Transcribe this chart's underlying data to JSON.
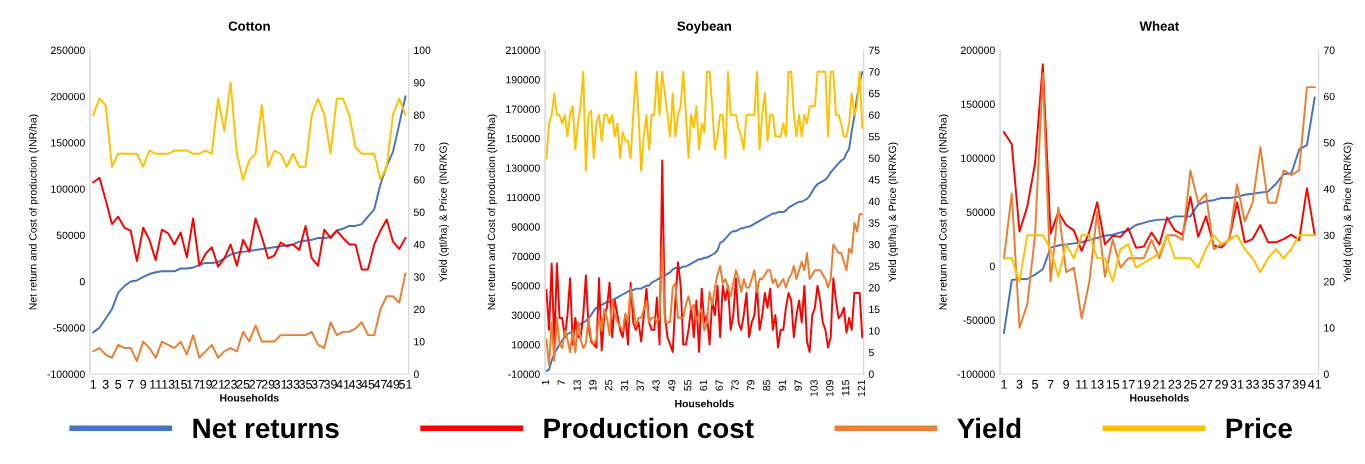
{
  "chart_data": [
    {
      "type": "line",
      "title": "Cotton",
      "xlabel": "Households",
      "ylabel": "Net return and Cost of production (INR/ha)",
      "y2label": "Yield (qtl/ha) & Price (INR/KG)",
      "categories": [
        "1",
        null,
        "3",
        null,
        "5",
        null,
        "7",
        null,
        "9",
        null,
        "11",
        null,
        "13",
        null,
        "15",
        null,
        "17",
        null,
        "19",
        null,
        "21",
        null,
        "23",
        null,
        "25",
        null,
        "27",
        null,
        "29",
        null,
        "31",
        null,
        "33",
        null,
        "35",
        null,
        "37",
        null,
        "39",
        null,
        "41",
        null,
        "43",
        null,
        "45",
        null,
        "47",
        null,
        "49",
        null,
        "51"
      ],
      "ylim": [
        -100000,
        250000
      ],
      "yticks": [
        -100000,
        -50000,
        0,
        50000,
        100000,
        150000,
        200000,
        250000
      ],
      "y2lim": [
        0,
        100
      ],
      "y2ticks": [
        0,
        10,
        20,
        30,
        40,
        50,
        60,
        70,
        80,
        90,
        100
      ],
      "legend": "bottom",
      "series": [
        {
          "name": "Net returns",
          "color": "#4472c4",
          "values": [
            -55000,
            -50000,
            -40000,
            -30000,
            -12000,
            -5000,
            0,
            1000,
            5000,
            8000,
            10000,
            11000,
            11000,
            11000,
            14000,
            14000,
            15000,
            18000,
            20000,
            20000,
            21000,
            25000,
            29000,
            31000,
            32000,
            33000,
            34000,
            35000,
            36000,
            37000,
            38000,
            39000,
            40000,
            43000,
            44000,
            45000,
            47000,
            47000,
            48000,
            55000,
            57000,
            60000,
            60000,
            62000,
            70000,
            78000,
            105000,
            125000,
            140000,
            170000,
            200000
          ]
        },
        {
          "name": "Production cost",
          "color": "#ff0000",
          "values": [
            107000,
            112000,
            88000,
            62000,
            70000,
            58000,
            55000,
            22000,
            58000,
            45000,
            23000,
            56000,
            52000,
            40000,
            53000,
            26000,
            68000,
            17000,
            30000,
            37000,
            16000,
            25000,
            40000,
            17000,
            45000,
            32000,
            68000,
            48000,
            25000,
            28000,
            42000,
            38000,
            40000,
            34000,
            60000,
            25000,
            17000,
            56000,
            47000,
            55000,
            47000,
            40000,
            40000,
            13000,
            13000,
            40000,
            55000,
            67000,
            43000,
            35000,
            47000
          ]
        },
        {
          "name": "Yield",
          "color": "#ed7d31",
          "axis": "y2",
          "values": [
            7,
            8,
            6,
            5,
            9,
            8,
            8,
            4,
            10,
            8,
            5,
            10,
            9,
            8,
            10,
            6,
            12,
            5,
            7,
            9,
            5,
            7,
            8,
            7,
            13,
            10,
            15,
            10,
            10,
            10,
            12,
            12,
            12,
            12,
            12,
            13,
            9,
            8,
            16,
            12,
            13,
            13,
            14,
            16,
            12,
            12,
            20,
            24,
            24,
            22,
            31
          ]
        },
        {
          "name": "Price",
          "color": "#ffc000",
          "axis": "y2",
          "values": [
            80,
            85,
            83,
            64,
            68,
            68,
            68,
            68,
            64,
            69,
            68,
            68,
            68,
            69,
            69,
            69,
            68,
            68,
            69,
            68,
            85,
            75,
            90,
            68,
            60,
            66,
            68,
            83,
            64,
            69,
            68,
            64,
            68,
            64,
            64,
            80,
            85,
            80,
            68,
            85,
            85,
            80,
            70,
            68,
            68,
            68,
            60,
            64,
            80,
            85,
            80
          ]
        }
      ]
    },
    {
      "type": "line",
      "title": "Soybean",
      "xlabel": "Households",
      "ylabel": "Net return and Cost of production (INR/ha)",
      "y2label": "Yield (qtl/ha) & Price (INR/KG)",
      "categories": [
        "1",
        null,
        null,
        null,
        null,
        null,
        "7",
        null,
        null,
        null,
        null,
        null,
        "13",
        null,
        null,
        null,
        null,
        null,
        "19",
        null,
        null,
        null,
        null,
        null,
        "25",
        null,
        null,
        null,
        null,
        null,
        "31",
        null,
        null,
        null,
        null,
        null,
        "37",
        null,
        null,
        null,
        null,
        null,
        "43",
        null,
        null,
        null,
        null,
        null,
        "49",
        null,
        null,
        null,
        null,
        null,
        "55",
        null,
        null,
        null,
        null,
        null,
        "61",
        null,
        null,
        null,
        null,
        null,
        "67",
        null,
        null,
        null,
        null,
        null,
        "73",
        null,
        null,
        null,
        null,
        null,
        "79",
        null,
        null,
        null,
        null,
        null,
        "85",
        null,
        null,
        null,
        null,
        null,
        "91",
        null,
        null,
        null,
        null,
        null,
        "97",
        null,
        null,
        null,
        null,
        null,
        "103",
        null,
        null,
        null,
        null,
        null,
        "109",
        null,
        null,
        null,
        null,
        null,
        "115",
        null,
        null,
        null,
        null,
        null,
        "121"
      ],
      "ylim": [
        -10000,
        210000
      ],
      "yticks": [
        -10000,
        10000,
        30000,
        50000,
        70000,
        90000,
        110000,
        130000,
        150000,
        170000,
        190000,
        210000
      ],
      "y2lim": [
        0,
        75
      ],
      "y2ticks": [
        0,
        5,
        10,
        15,
        20,
        25,
        30,
        35,
        40,
        45,
        50,
        55,
        60,
        65,
        70,
        75
      ],
      "legend": "bottom",
      "series": [
        {
          "name": "Net returns",
          "color": "#4472c4",
          "values": [
            -8000,
            -7000,
            -1000,
            4000,
            7000,
            10000,
            13000,
            15000,
            17000,
            18000,
            19000,
            21000,
            23000,
            24000,
            25000,
            26000,
            28000,
            30000,
            33000,
            35000,
            36000,
            37000,
            38000,
            39000,
            39000,
            40000,
            41000,
            42000,
            43000,
            44000,
            45000,
            46000,
            47000,
            47000,
            48000,
            48000,
            48000,
            49000,
            50000,
            50000,
            52000,
            53000,
            54000,
            55000,
            56000,
            57000,
            58000,
            59000,
            61000,
            62000,
            62000,
            62000,
            63000,
            63000,
            64000,
            65000,
            66000,
            67000,
            68000,
            68000,
            69000,
            69000,
            70000,
            71000,
            72000,
            74000,
            79000,
            80000,
            82000,
            84000,
            86000,
            87000,
            87000,
            88000,
            89000,
            89000,
            90000,
            90000,
            91000,
            92000,
            93000,
            94000,
            95000,
            96000,
            97000,
            98000,
            99000,
            99000,
            100000,
            100000,
            100000,
            101000,
            103000,
            104000,
            105000,
            106000,
            107000,
            107000,
            108000,
            109000,
            111000,
            114000,
            117000,
            119000,
            120000,
            121000,
            122000,
            124000,
            127000,
            129000,
            131000,
            133000,
            135000,
            136000,
            140000,
            143000,
            155000,
            165000,
            178000,
            188000,
            195000
          ]
        },
        {
          "name": "Production cost",
          "color": "#ff0000",
          "values": [
            47000,
            20000,
            65000,
            10000,
            65000,
            28000,
            28000,
            15000,
            30000,
            55000,
            10000,
            28000,
            15000,
            15000,
            30000,
            57000,
            22000,
            12000,
            10000,
            8000,
            55000,
            6000,
            30000,
            35000,
            52000,
            15000,
            40000,
            30000,
            20000,
            15000,
            30000,
            10000,
            52000,
            25000,
            20000,
            25000,
            12000,
            30000,
            48000,
            25000,
            20000,
            20000,
            42000,
            10000,
            135000,
            30000,
            15000,
            10000,
            5000,
            40000,
            66000,
            50000,
            10000,
            10000,
            20000,
            35000,
            15000,
            40000,
            5000,
            48000,
            25000,
            30000,
            10000,
            40000,
            30000,
            50000,
            15000,
            50000,
            40000,
            50000,
            20000,
            30000,
            55000,
            25000,
            20000,
            30000,
            45000,
            15000,
            25000,
            30000,
            50000,
            20000,
            30000,
            45000,
            35000,
            48000,
            20000,
            30000,
            8000,
            20000,
            20000,
            35000,
            45000,
            40000,
            15000,
            30000,
            40000,
            25000,
            50000,
            12000,
            5000,
            30000,
            35000,
            50000,
            40000,
            25000,
            20000,
            8000,
            15000,
            55000,
            40000,
            28000,
            30000,
            35000,
            18000,
            28000,
            20000,
            45000,
            45000,
            45000,
            15000
          ]
        },
        {
          "name": "Yield",
          "color": "#ed7d31",
          "axis": "y2",
          "values": [
            8,
            2,
            12,
            3,
            13,
            7,
            6,
            10,
            8,
            5,
            10,
            5,
            12,
            8,
            6,
            7,
            13,
            8,
            7,
            8,
            13,
            10,
            15,
            13,
            9,
            17,
            14,
            12,
            11,
            10,
            14,
            12,
            20,
            16,
            11,
            13,
            13,
            15,
            17,
            12,
            13,
            13,
            12,
            13,
            30,
            12,
            12,
            12,
            20,
            21,
            13,
            13,
            13,
            16,
            18,
            15,
            16,
            12,
            14,
            15,
            10,
            12,
            19,
            16,
            20,
            23,
            25,
            21,
            22,
            20,
            18,
            21,
            24,
            22,
            19,
            22,
            20,
            20,
            22,
            24,
            19,
            22,
            22,
            23,
            24,
            24,
            21,
            22,
            20,
            21,
            22,
            20,
            22,
            23,
            25,
            22,
            24,
            26,
            24,
            28,
            22,
            23,
            24,
            24,
            24,
            23,
            22,
            20,
            22,
            30,
            29,
            28,
            28,
            26,
            24,
            29,
            28,
            35,
            33,
            37,
            37
          ]
        },
        {
          "name": "Price",
          "color": "#ffc000",
          "axis": "y2",
          "values": [
            50,
            58,
            60,
            65,
            60,
            60,
            58,
            60,
            55,
            60,
            62,
            52,
            58,
            62,
            70,
            47,
            60,
            61,
            50,
            58,
            60,
            54,
            60,
            60,
            58,
            60,
            55,
            58,
            50,
            56,
            54,
            54,
            50,
            60,
            70,
            60,
            47,
            55,
            60,
            52,
            60,
            60,
            70,
            60,
            70,
            65,
            60,
            55,
            65,
            55,
            60,
            62,
            70,
            60,
            50,
            60,
            57,
            62,
            52,
            58,
            56,
            70,
            70,
            62,
            52,
            55,
            60,
            60,
            50,
            70,
            60,
            60,
            60,
            57,
            55,
            52,
            60,
            60,
            60,
            60,
            70,
            52,
            60,
            65,
            54,
            60,
            60,
            55,
            55,
            55,
            58,
            55,
            70,
            70,
            60,
            55,
            60,
            55,
            60,
            58,
            62,
            62,
            62,
            70,
            70,
            70,
            70,
            55,
            70,
            70,
            60,
            60,
            58,
            55,
            55,
            58,
            65,
            60,
            62,
            70,
            57
          ]
        }
      ]
    },
    {
      "type": "line",
      "title": "Wheat",
      "xlabel": "Households",
      "ylabel": "Net return and Cost of production (INR/ha)",
      "y2label": "Yield (qtl/ha) & Price (INR/KG)",
      "categories": [
        "1",
        null,
        "3",
        null,
        "5",
        null,
        "7",
        null,
        "9",
        null,
        "11",
        null,
        "13",
        null,
        "15",
        null,
        "17",
        null,
        "19",
        null,
        "21",
        null,
        "23",
        null,
        "25",
        null,
        "27",
        null,
        "29",
        null,
        "31",
        null,
        "33",
        null,
        "35",
        null,
        "37",
        null,
        "39",
        null,
        "41"
      ],
      "ylim": [
        -100000,
        200000
      ],
      "yticks": [
        -100000,
        -50000,
        0,
        50000,
        100000,
        150000,
        200000
      ],
      "y2lim": [
        0,
        70
      ],
      "y2ticks": [
        0,
        10,
        20,
        30,
        40,
        50,
        60,
        70
      ],
      "legend": "bottom",
      "series": [
        {
          "name": "Net returns",
          "color": "#4472c4",
          "values": [
            -62000,
            -13000,
            -12000,
            -12000,
            -8000,
            -3000,
            17000,
            19000,
            20000,
            21000,
            22000,
            24000,
            26000,
            28000,
            29000,
            31000,
            33000,
            38000,
            40000,
            42000,
            43000,
            43000,
            46000,
            46000,
            46000,
            57000,
            60000,
            61000,
            63000,
            63000,
            64000,
            66000,
            67000,
            68000,
            69000,
            76000,
            85000,
            86000,
            108000,
            112000,
            156000
          ]
        },
        {
          "name": "Production cost",
          "color": "#ff0000",
          "values": [
            124000,
            113000,
            32000,
            55000,
            95000,
            187000,
            30000,
            50000,
            38000,
            33000,
            14000,
            32000,
            59000,
            20000,
            28000,
            27000,
            35000,
            17000,
            18000,
            31000,
            20000,
            45000,
            33000,
            29000,
            64000,
            27000,
            46000,
            19000,
            17000,
            25000,
            59000,
            22000,
            25000,
            38000,
            22000,
            22000,
            25000,
            29000,
            24000,
            72000,
            29000
          ]
        },
        {
          "name": "Yield",
          "color": "#ed7d31",
          "axis": "y2",
          "values": [
            25,
            39,
            10,
            15,
            30,
            65,
            20,
            36,
            22,
            23,
            12,
            20,
            35,
            21,
            29,
            23,
            25,
            25,
            25,
            29,
            25,
            30,
            30,
            29,
            44,
            37,
            39,
            27,
            28,
            29,
            41,
            33,
            37,
            49,
            37,
            37,
            44,
            43,
            44,
            62,
            62
          ]
        },
        {
          "name": "Price",
          "color": "#ffc000",
          "axis": "y2",
          "values": [
            25,
            25,
            20,
            30,
            30,
            30,
            27,
            21,
            28,
            25,
            30,
            30,
            25,
            25,
            20,
            27,
            28,
            23,
            24,
            25,
            26,
            30,
            25,
            25,
            25,
            23,
            27,
            30,
            28,
            29,
            30,
            27,
            25,
            22,
            25,
            27,
            25,
            27,
            30,
            30,
            30
          ]
        }
      ]
    }
  ]
}
